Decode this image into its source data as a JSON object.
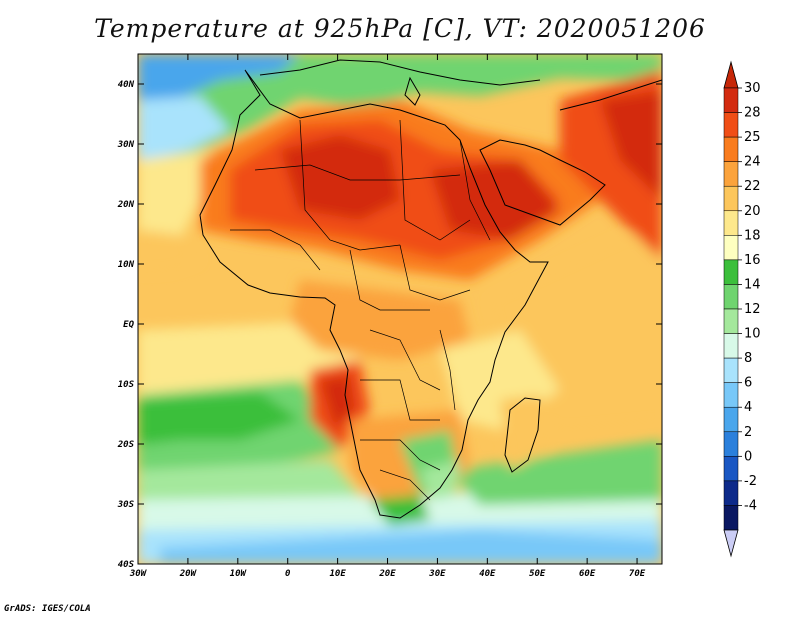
{
  "title": "Temperature at 925hPa [C], VT: 2020051206",
  "credit": "GrADS: IGES/COLA",
  "map": {
    "lon_range": [
      -30,
      75
    ],
    "lat_range": [
      -40,
      45
    ],
    "lon_ticks": [
      "30W",
      "20W",
      "10W",
      "0",
      "10E",
      "20E",
      "30E",
      "40E",
      "50E",
      "60E",
      "70E"
    ],
    "lat_ticks": [
      "40N",
      "30N",
      "20N",
      "10N",
      "EQ",
      "10S",
      "20S",
      "30S",
      "40S"
    ]
  },
  "colorbar": {
    "labels": [
      "30",
      "28",
      "25",
      "24",
      "22",
      "20",
      "18",
      "16",
      "14",
      "12",
      "10",
      "8",
      "6",
      "4",
      "2",
      "0",
      "-2",
      "-4"
    ],
    "colors": [
      "#d32b10",
      "#f04e16",
      "#f97c1e",
      "#fba33c",
      "#fcc65c",
      "#fde88c",
      "#feffc0",
      "#3bbf3b",
      "#6fd46f",
      "#a4e89c",
      "#d8f9e8",
      "#a9e3fc",
      "#78c8f8",
      "#4aa6ec",
      "#2b80dc",
      "#1a57c3",
      "#0d2a8a",
      "#0a1862"
    ],
    "top_color": "#c62708",
    "bottom_color": "#cbcdf5"
  }
}
